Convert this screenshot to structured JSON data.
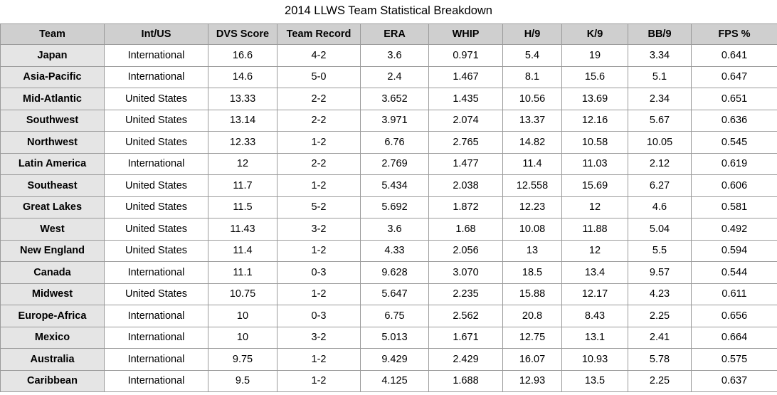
{
  "chart_data": {
    "type": "table",
    "title": "2014 LLWS Team Statistical Breakdown",
    "columns": [
      "Team",
      "Int/US",
      "DVS Score",
      "Team Record",
      "ERA",
      "WHIP",
      "H/9",
      "K/9",
      "BB/9",
      "FPS %"
    ],
    "rows": [
      [
        "Japan",
        "International",
        "16.6",
        "4-2",
        "3.6",
        "0.971",
        "5.4",
        "19",
        "3.34",
        "0.641"
      ],
      [
        "Asia-Pacific",
        "International",
        "14.6",
        "5-0",
        "2.4",
        "1.467",
        "8.1",
        "15.6",
        "5.1",
        "0.647"
      ],
      [
        "Mid-Atlantic",
        "United States",
        "13.33",
        "2-2",
        "3.652",
        "1.435",
        "10.56",
        "13.69",
        "2.34",
        "0.651"
      ],
      [
        "Southwest",
        "United States",
        "13.14",
        "2-2",
        "3.971",
        "2.074",
        "13.37",
        "12.16",
        "5.67",
        "0.636"
      ],
      [
        "Northwest",
        "United States",
        "12.33",
        "1-2",
        "6.76",
        "2.765",
        "14.82",
        "10.58",
        "10.05",
        "0.545"
      ],
      [
        "Latin America",
        "International",
        "12",
        "2-2",
        "2.769",
        "1.477",
        "11.4",
        "11.03",
        "2.12",
        "0.619"
      ],
      [
        "Southeast",
        "United States",
        "11.7",
        "1-2",
        "5.434",
        "2.038",
        "12.558",
        "15.69",
        "6.27",
        "0.606"
      ],
      [
        "Great Lakes",
        "United States",
        "11.5",
        "5-2",
        "5.692",
        "1.872",
        "12.23",
        "12",
        "4.6",
        "0.581"
      ],
      [
        "West",
        "United States",
        "11.43",
        "3-2",
        "3.6",
        "1.68",
        "10.08",
        "11.88",
        "5.04",
        "0.492"
      ],
      [
        "New England",
        "United States",
        "11.4",
        "1-2",
        "4.33",
        "2.056",
        "13",
        "12",
        "5.5",
        "0.594"
      ],
      [
        "Canada",
        "International",
        "11.1",
        "0-3",
        "9.628",
        "3.070",
        "18.5",
        "13.4",
        "9.57",
        "0.544"
      ],
      [
        "Midwest",
        "United States",
        "10.75",
        "1-2",
        "5.647",
        "2.235",
        "15.88",
        "12.17",
        "4.23",
        "0.611"
      ],
      [
        "Europe-Africa",
        "International",
        "10",
        "0-3",
        "6.75",
        "2.562",
        "20.8",
        "8.43",
        "2.25",
        "0.656"
      ],
      [
        "Mexico",
        "International",
        "10",
        "3-2",
        "5.013",
        "1.671",
        "12.75",
        "13.1",
        "2.41",
        "0.664"
      ],
      [
        "Australia",
        "International",
        "9.75",
        "1-2",
        "9.429",
        "2.429",
        "16.07",
        "10.93",
        "5.78",
        "0.575"
      ],
      [
        "Caribbean",
        "International",
        "9.5",
        "1-2",
        "4.125",
        "1.688",
        "12.93",
        "13.5",
        "2.25",
        "0.637"
      ]
    ],
    "colors": {
      "header_bg": "#cfcfcf",
      "team_col_bg": "#e5e5e5",
      "cell_bg": "#ffffff",
      "border": "#9a9a9a"
    }
  }
}
